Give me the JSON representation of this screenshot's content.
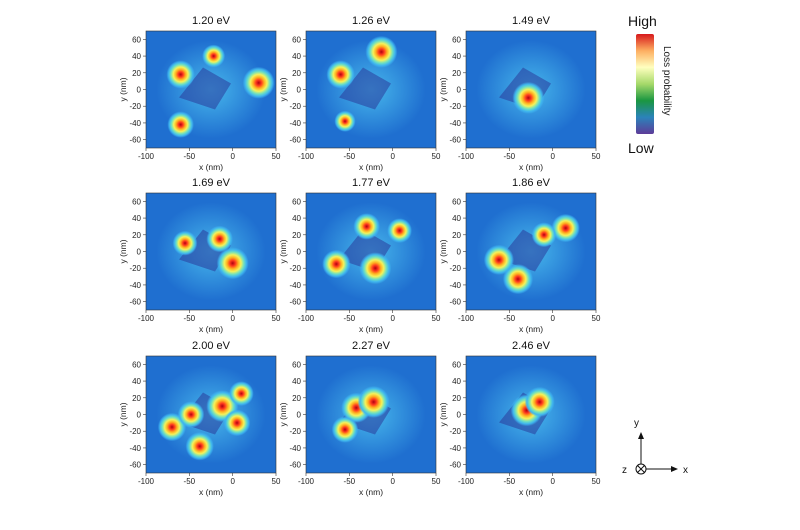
{
  "chart_data": {
    "type": "heatmap",
    "x_unit_label": "x (nm)",
    "y_unit_label": "y (nm)",
    "xlim": [
      -100,
      50
    ],
    "ylim": [
      -70,
      70
    ],
    "x_ticks": [
      "-100",
      "-50",
      "0",
      "50"
    ],
    "y_ticks": [
      "60",
      "40",
      "20",
      "0",
      "-20",
      "-40",
      "-60"
    ],
    "panels": [
      {
        "title": "1.20 eV",
        "hotspots": [
          [
            -60,
            18,
            0.8
          ],
          [
            30,
            8,
            1.0
          ],
          [
            -60,
            -42,
            0.7
          ],
          [
            -22,
            40,
            0.5
          ]
        ]
      },
      {
        "title": "1.26 eV",
        "hotspots": [
          [
            -13,
            45,
            1.0
          ],
          [
            -60,
            18,
            0.8
          ],
          [
            -55,
            -38,
            0.4
          ]
        ]
      },
      {
        "title": "1.49 eV",
        "hotspots": [
          [
            -28,
            -10,
            1.0
          ]
        ]
      },
      {
        "title": "1.69 eV",
        "hotspots": [
          [
            -55,
            10,
            0.6
          ],
          [
            -15,
            15,
            0.7
          ],
          [
            0,
            -14,
            1.0
          ]
        ]
      },
      {
        "title": "1.77 eV",
        "hotspots": [
          [
            -30,
            30,
            0.7
          ],
          [
            -65,
            -15,
            0.8
          ],
          [
            -20,
            -20,
            1.0
          ],
          [
            8,
            25,
            0.6
          ]
        ]
      },
      {
        "title": "1.86 eV",
        "hotspots": [
          [
            -62,
            -10,
            0.9
          ],
          [
            15,
            28,
            0.8
          ],
          [
            -40,
            -33,
            0.9
          ],
          [
            -10,
            20,
            0.6
          ]
        ]
      },
      {
        "title": "2.00 eV",
        "hotspots": [
          [
            -70,
            -15,
            0.8
          ],
          [
            -48,
            0,
            0.7
          ],
          [
            -38,
            -38,
            0.8
          ],
          [
            -12,
            10,
            1.0
          ],
          [
            5,
            -10,
            0.7
          ],
          [
            10,
            25,
            0.6
          ]
        ]
      },
      {
        "title": "2.27 eV",
        "hotspots": [
          [
            -42,
            8,
            0.9
          ],
          [
            -22,
            15,
            1.0
          ],
          [
            -55,
            -18,
            0.7
          ]
        ]
      },
      {
        "title": "2.46 eV",
        "hotspots": [
          [
            -30,
            5,
            1.0
          ],
          [
            -15,
            15,
            0.9
          ]
        ]
      }
    ]
  },
  "colorbar": {
    "high_label": "High",
    "low_label": "Low",
    "quantity_label": "Loss probability",
    "colors": [
      "#d7191c",
      "#fdae61",
      "#ffffbf",
      "#a6d96a",
      "#1a9641",
      "#2b83ba",
      "#5e3c99"
    ]
  },
  "axes_glyph": {
    "y_label": "y",
    "x_label": "x",
    "z_label": "z"
  },
  "colors": {
    "background_field": "#1f6fd0",
    "low": "#2a3b9a",
    "high": "#c0101a"
  }
}
